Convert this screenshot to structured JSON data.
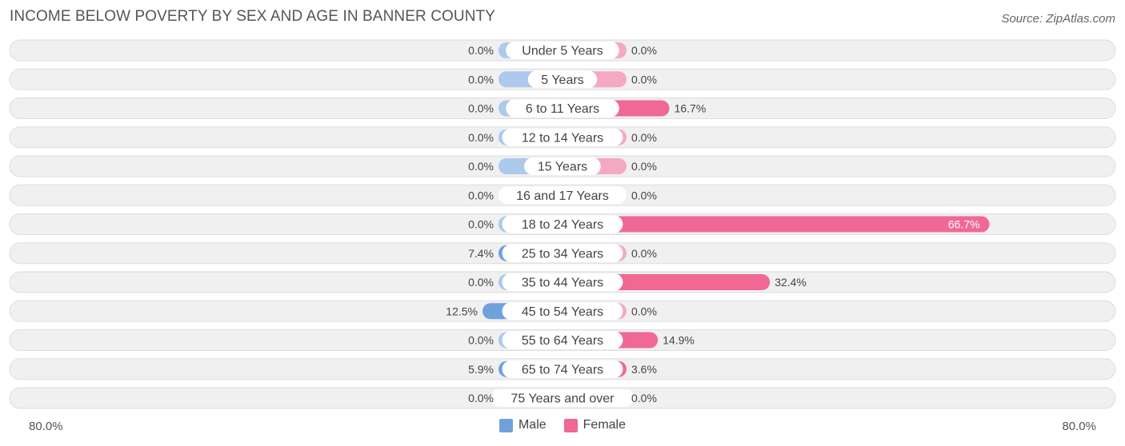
{
  "title": "INCOME BELOW POVERTY BY SEX AND AGE IN BANNER COUNTY",
  "source": "Source: ZipAtlas.com",
  "chart_data": {
    "type": "bar",
    "orientation": "horizontal-diverging",
    "title": "INCOME BELOW POVERTY BY SEX AND AGE IN BANNER COUNTY",
    "categories": [
      "Under 5 Years",
      "5 Years",
      "6 to 11 Years",
      "12 to 14 Years",
      "15 Years",
      "16 and 17 Years",
      "18 to 24 Years",
      "25 to 34 Years",
      "35 to 44 Years",
      "45 to 54 Years",
      "55 to 64 Years",
      "65 to 74 Years",
      "75 Years and over"
    ],
    "series": [
      {
        "name": "Male",
        "values": [
          0.0,
          0.0,
          0.0,
          0.0,
          0.0,
          0.0,
          0.0,
          7.4,
          0.0,
          12.5,
          0.0,
          5.9,
          0.0
        ],
        "labels": [
          "0.0%",
          "0.0%",
          "0.0%",
          "0.0%",
          "0.0%",
          "0.0%",
          "0.0%",
          "7.4%",
          "0.0%",
          "12.5%",
          "0.0%",
          "5.9%",
          "0.0%"
        ]
      },
      {
        "name": "Female",
        "values": [
          0.0,
          0.0,
          16.7,
          0.0,
          0.0,
          0.0,
          66.7,
          0.0,
          32.4,
          0.0,
          14.9,
          3.6,
          0.0
        ],
        "labels": [
          "0.0%",
          "0.0%",
          "16.7%",
          "0.0%",
          "0.0%",
          "0.0%",
          "66.7%",
          "0.0%",
          "32.4%",
          "0.0%",
          "14.9%",
          "3.6%",
          "0.0%"
        ]
      }
    ],
    "xlim": [
      -80,
      80
    ],
    "axis_left_label": "80.0%",
    "axis_right_label": "80.0%",
    "legend_position": "bottom-center",
    "colors": {
      "male": "#6fa2dc",
      "male_light": "#adc9ec",
      "female": "#f06894",
      "female_light": "#f5a8c2",
      "row_bg": "#f0f0f0",
      "row_border": "#dddddd"
    }
  },
  "legend": {
    "male_label": "Male",
    "female_label": "Female"
  }
}
